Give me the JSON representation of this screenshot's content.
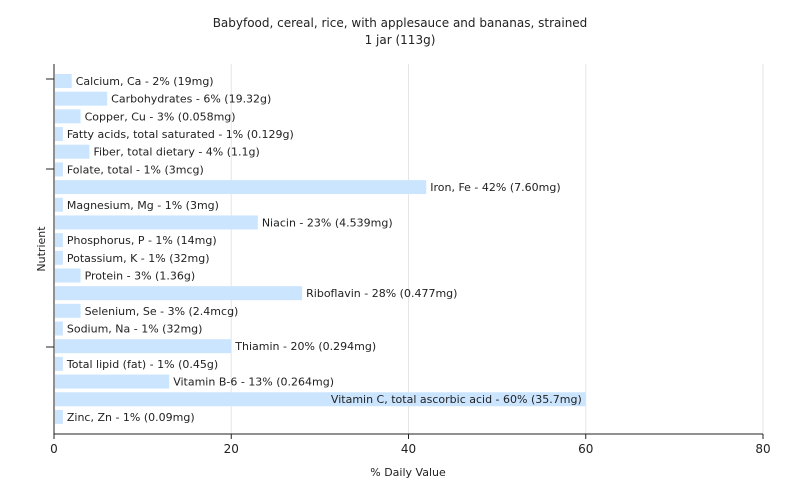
{
  "chart_data": {
    "type": "bar",
    "orientation": "horizontal",
    "title": "Babyfood, cereal, rice, with applesauce and bananas, strained",
    "subtitle": "1 jar (113g)",
    "xlabel": "% Daily Value",
    "ylabel": "Nutrient",
    "xlim": [
      0,
      80
    ],
    "xticks": [
      0,
      20,
      40,
      60,
      80
    ],
    "grid": true,
    "bar_color": "#cce5ff",
    "categories": [
      "Calcium, Ca",
      "Carbohydrates",
      "Copper, Cu",
      "Fatty acids, total saturated",
      "Fiber, total dietary",
      "Folate, total",
      "Iron, Fe",
      "Magnesium, Mg",
      "Niacin",
      "Phosphorus, P",
      "Potassium, K",
      "Protein",
      "Riboflavin",
      "Selenium, Se",
      "Sodium, Na",
      "Thiamin",
      "Total lipid (fat)",
      "Vitamin B-6",
      "Vitamin C, total ascorbic acid",
      "Zinc, Zn"
    ],
    "values": [
      2,
      6,
      3,
      1,
      4,
      1,
      42,
      1,
      23,
      1,
      1,
      3,
      28,
      3,
      1,
      20,
      1,
      13,
      60,
      1
    ],
    "labels": [
      "Calcium, Ca - 2% (19mg)",
      "Carbohydrates - 6% (19.32g)",
      "Copper, Cu - 3% (0.058mg)",
      "Fatty acids, total saturated - 1% (0.129g)",
      "Fiber, total dietary - 4% (1.1g)",
      "Folate, total - 1% (3mcg)",
      "Iron, Fe - 42% (7.60mg)",
      "Magnesium, Mg - 1% (3mg)",
      "Niacin - 23% (4.539mg)",
      "Phosphorus, P - 1% (14mg)",
      "Potassium, K - 1% (32mg)",
      "Protein - 3% (1.36g)",
      "Riboflavin - 28% (0.477mg)",
      "Selenium, Se - 3% (2.4mcg)",
      "Sodium, Na - 1% (32mg)",
      "Thiamin - 20% (0.294mg)",
      "Total lipid (fat) - 1% (0.45g)",
      "Vitamin B-6 - 13% (0.264mg)",
      "Vitamin C, total ascorbic acid - 60% (35.7mg)",
      "Zinc, Zn - 1% (0.09mg)"
    ]
  }
}
